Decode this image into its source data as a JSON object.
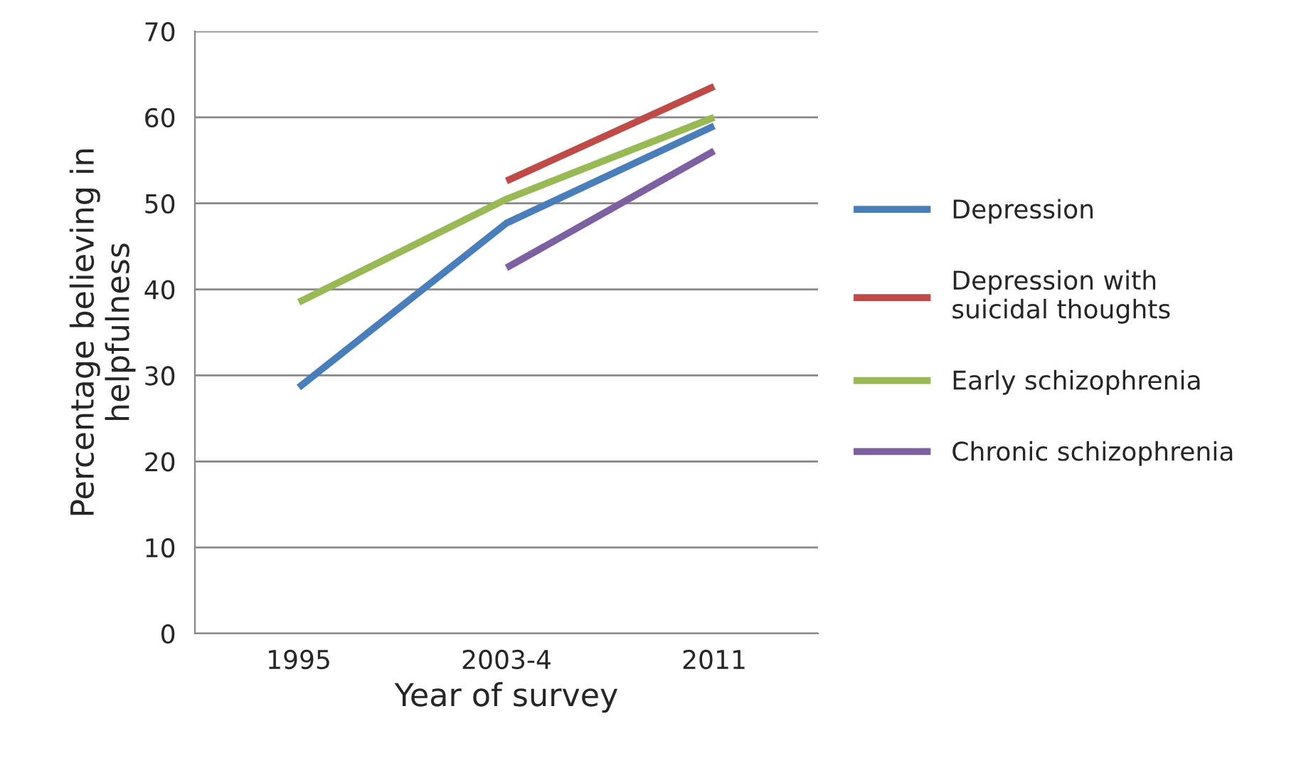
{
  "chart_data": {
    "type": "line",
    "xlabel": "Year of survey",
    "ylabel": "Percentage believing in\nhelpfulness",
    "categories": [
      "1995",
      "2003-4",
      "2011"
    ],
    "series": [
      {
        "name": "Depression",
        "color": "#4a7ebb",
        "values": [
          28.6,
          47.7,
          59
        ]
      },
      {
        "name": "Depression with\nsuicidal thoughts",
        "color": "#be4b48",
        "values": [
          null,
          52.6,
          63.6
        ]
      },
      {
        "name": "Early schizophrenia",
        "color": "#98b954",
        "values": [
          38.5,
          50.5,
          60
        ]
      },
      {
        "name": "Chronic schizophrenia",
        "color": "#7d60a0",
        "values": [
          null,
          42.5,
          56.1
        ]
      }
    ],
    "ylim": [
      0,
      70
    ],
    "yticks": [
      0,
      10,
      20,
      30,
      40,
      50,
      60,
      70
    ],
    "grid": "y",
    "legend": "right",
    "marker": "none",
    "line_style": "solid"
  }
}
